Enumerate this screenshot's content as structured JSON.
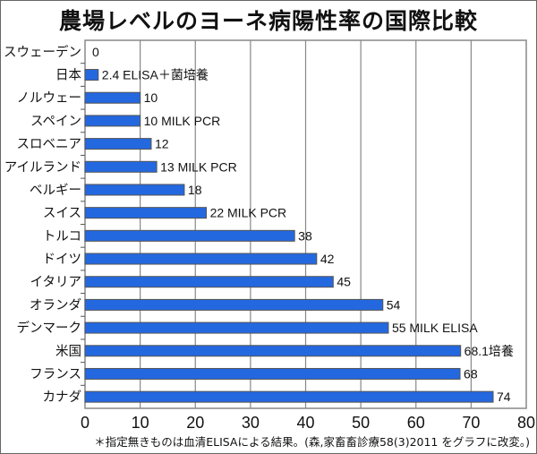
{
  "chart_data": {
    "type": "bar",
    "orientation": "horizontal",
    "title": "農場レベルのヨーネ病陽性率の国際比較",
    "xlabel": "",
    "ylabel": "",
    "xlim": [
      0,
      80
    ],
    "xticks": [
      0,
      10,
      20,
      30,
      40,
      50,
      60,
      70,
      80
    ],
    "grid": true,
    "legend": null,
    "categories": [
      "スウェーデン",
      "日本",
      "ノルウェー",
      "スペイン",
      "スロベニア",
      "アイルランド",
      "ベルギー",
      "スイス",
      "トルコ",
      "ドイツ",
      "イタリア",
      "オランダ",
      "デンマーク",
      "米国",
      "フランス",
      "カナダ"
    ],
    "values": [
      0,
      2.4,
      10,
      10,
      12,
      13,
      18,
      22,
      38,
      42,
      45,
      54,
      55,
      68.1,
      68,
      74
    ],
    "data_labels": [
      "0",
      "2.4 ELISA＋菌培養",
      "10",
      "10 MILK PCR",
      "12",
      "13  MILK PCR",
      "18",
      "22  MILK PCR",
      "38",
      "42",
      "45",
      "54",
      "55 MILK ELISA",
      "68.1培養",
      "68",
      "74"
    ],
    "colors": {
      "bar": "#2468e0",
      "bar_border": "#555555",
      "grid": "#888888"
    }
  },
  "footnote": "＊指定無きものは血清ELISAによる結果。(森,家畜畜診療58(3)2011 をグラフに改変。)"
}
